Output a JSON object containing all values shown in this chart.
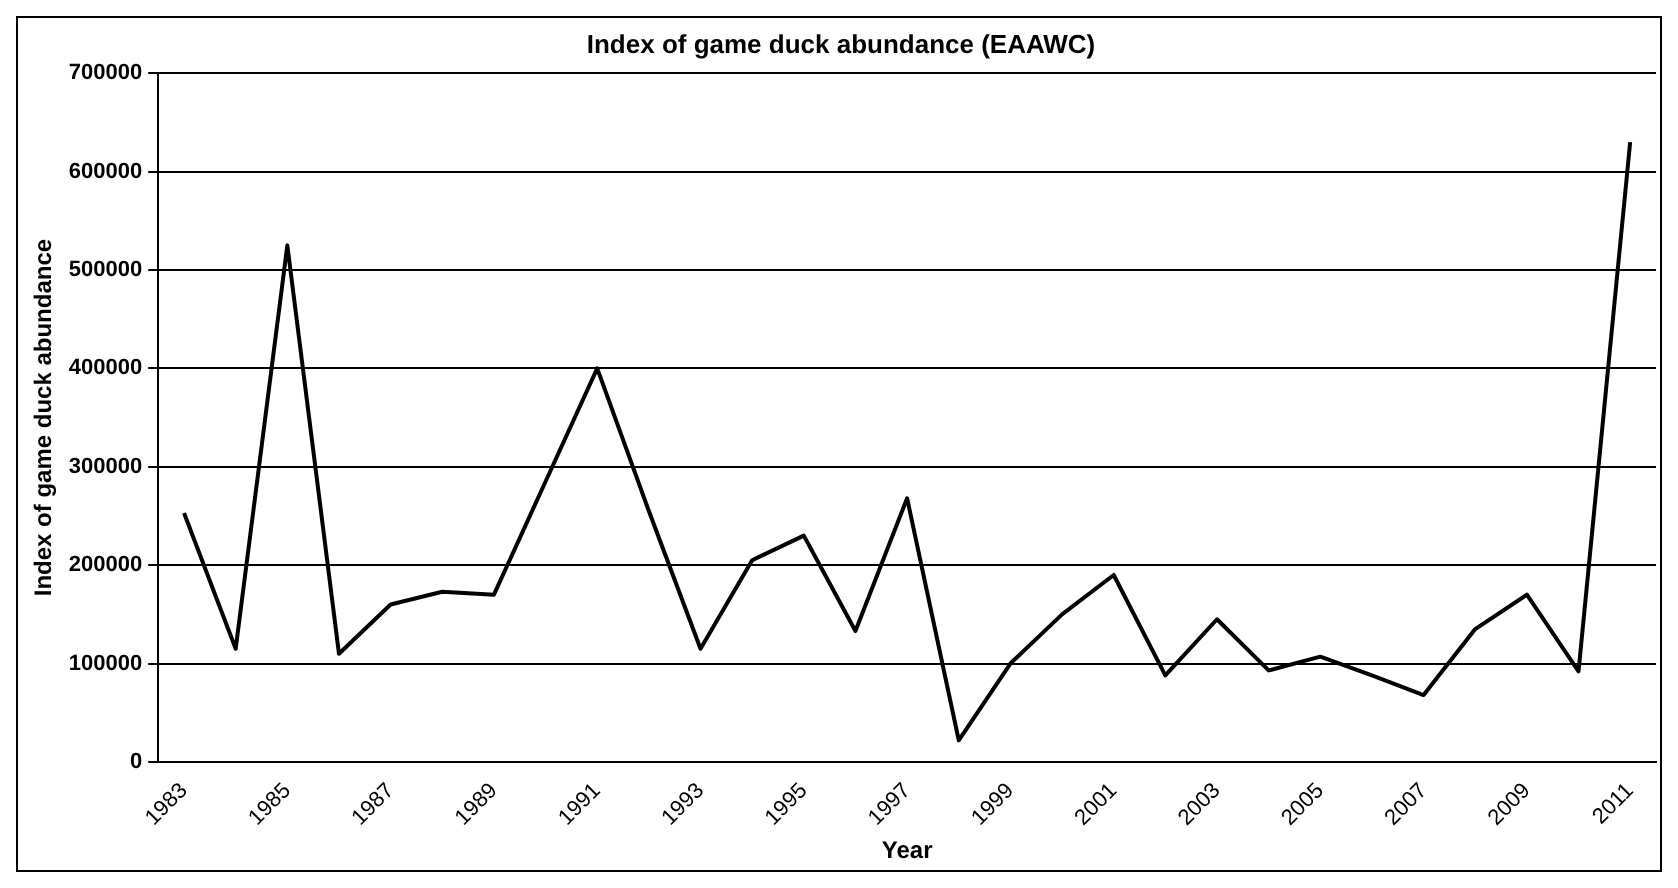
{
  "chart_data": {
    "type": "line",
    "title": "Index of game duck abundance (EAAWC)",
    "xlabel": "Year",
    "ylabel": "Index of game duck abundance",
    "categories": [
      "1983",
      null,
      "1985",
      null,
      "1987",
      null,
      "1989",
      null,
      "1991",
      null,
      "1993",
      null,
      "1995",
      null,
      "1997",
      null,
      "1999",
      null,
      "2001",
      null,
      "2003",
      null,
      "2005",
      null,
      "2007",
      null,
      "2009",
      null,
      "2011"
    ],
    "series": [
      {
        "color": "#000000",
        "values": [
          253000,
          115000,
          525000,
          110000,
          160000,
          173000,
          170000,
          285000,
          400000,
          255000,
          115000,
          205000,
          230000,
          133000,
          268000,
          22000,
          100000,
          150000,
          190000,
          88000,
          145000,
          93000,
          107000,
          88000,
          68000,
          135000,
          170000,
          92000,
          630000
        ]
      }
    ],
    "ylim": [
      0,
      700000
    ],
    "yticks": [
      0,
      100000,
      200000,
      300000,
      400000,
      500000,
      600000,
      700000
    ],
    "grid": "y",
    "legend": false,
    "marker": "none",
    "line_style": "solid"
  }
}
